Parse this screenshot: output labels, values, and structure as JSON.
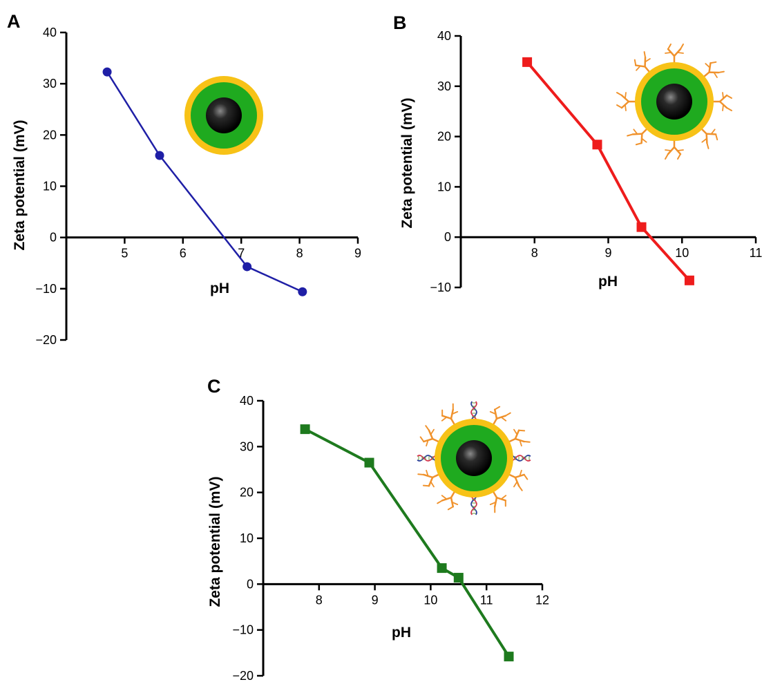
{
  "chart_data": [
    {
      "panel": "A",
      "type": "line",
      "xlabel": "pH",
      "ylabel": "Zeta potential (mV)",
      "xlim": [
        4,
        9
      ],
      "ylim": [
        -20,
        40
      ],
      "xticks": [
        5,
        6,
        7,
        8,
        9
      ],
      "yticks": [
        -20,
        -10,
        0,
        10,
        20,
        30,
        40
      ],
      "marker": "circle",
      "series": [
        {
          "color": "#1f1fa6",
          "x": [
            4.7,
            5.6,
            7.1,
            8.05
          ],
          "y": [
            32.3,
            16.0,
            -5.7,
            -10.6
          ]
        }
      ],
      "inset": "bare-nanoparticle"
    },
    {
      "panel": "B",
      "type": "line",
      "xlabel": "pH",
      "ylabel": "Zeta potential (mV)",
      "xlim": [
        7,
        11
      ],
      "ylim": [
        -10,
        40
      ],
      "xticks": [
        8,
        9,
        10,
        11
      ],
      "yticks": [
        -10,
        0,
        10,
        20,
        30,
        40
      ],
      "marker": "square",
      "series": [
        {
          "color": "#ee1c1c",
          "x": [
            7.9,
            8.85,
            9.45,
            10.1
          ],
          "y": [
            34.8,
            18.4,
            2.0,
            -8.6
          ]
        }
      ],
      "inset": "antibody-conjugated-nanoparticle"
    },
    {
      "panel": "C",
      "type": "line",
      "xlabel": "pH",
      "ylabel": "Zeta potential (mV)",
      "xlim": [
        7,
        12
      ],
      "ylim": [
        -20,
        40
      ],
      "xticks": [
        8,
        9,
        10,
        11,
        12
      ],
      "yticks": [
        -20,
        -10,
        0,
        10,
        20,
        30,
        40
      ],
      "marker": "square",
      "series": [
        {
          "color": "#1e7a1e",
          "x": [
            7.75,
            8.9,
            10.2,
            10.5,
            11.4
          ],
          "y": [
            33.8,
            26.5,
            3.5,
            1.4,
            -15.8
          ]
        }
      ],
      "inset": "antibody-dna-conjugated-nanoparticle"
    }
  ]
}
